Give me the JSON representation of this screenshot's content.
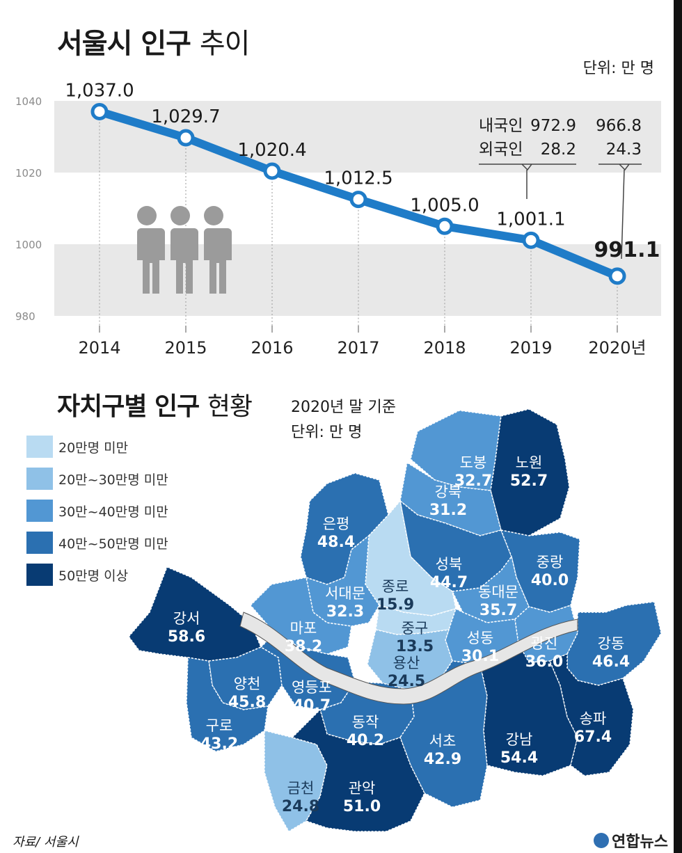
{
  "title_bold": "서울시 인구",
  "title_light": "추이",
  "unit": "단위: 만 명",
  "chart_data": [
    {
      "type": "line",
      "title": "서울시 인구 추이",
      "unit": "단위: 만 명",
      "categories": [
        "2014",
        "2015",
        "2016",
        "2017",
        "2018",
        "2019",
        "2020년"
      ],
      "values": [
        1037.0,
        1029.7,
        1020.4,
        1012.5,
        1005.0,
        1001.1,
        991.1
      ],
      "value_labels": [
        "1,037.0",
        "1,029.7",
        "1,020.4",
        "1,012.5",
        "1,005.0",
        "1,001.1",
        "991.1"
      ],
      "yticks": [
        1040,
        1020,
        1000,
        980
      ],
      "ylim": [
        980,
        1040
      ],
      "grid": "alternating bands",
      "color": "#1f7cc8",
      "breakdown": {
        "labels": [
          "내국인",
          "외국인"
        ],
        "2019": [
          "972.9",
          "28.2"
        ],
        "2020": [
          "966.8",
          "24.3"
        ]
      }
    },
    {
      "type": "choropleth",
      "title": "자치구별 인구 현황",
      "basis": "2020년 말 기준",
      "unit": "단위: 만 명",
      "legend": [
        {
          "label": "20만명 미만",
          "color": "#b9dbf2"
        },
        {
          "label": "20만~30만명 미만",
          "color": "#8fc1e7"
        },
        {
          "label": "30만~40만명 미만",
          "color": "#5297d3"
        },
        {
          "label": "40만~50만명 미만",
          "color": "#2b70b1"
        },
        {
          "label": "50만명 이상",
          "color": "#083b73"
        }
      ],
      "districts": [
        {
          "name": "도봉",
          "value": "32.7",
          "tier": 2
        },
        {
          "name": "노원",
          "value": "52.7",
          "tier": 4
        },
        {
          "name": "강북",
          "value": "31.2",
          "tier": 2
        },
        {
          "name": "은평",
          "value": "48.4",
          "tier": 3
        },
        {
          "name": "성북",
          "value": "44.7",
          "tier": 3
        },
        {
          "name": "중랑",
          "value": "40.0",
          "tier": 3
        },
        {
          "name": "종로",
          "value": "15.9",
          "tier": 0
        },
        {
          "name": "동대문",
          "value": "35.7",
          "tier": 2
        },
        {
          "name": "서대문",
          "value": "32.3",
          "tier": 2
        },
        {
          "name": "강서",
          "value": "58.6",
          "tier": 4
        },
        {
          "name": "마포",
          "value": "38.2",
          "tier": 2
        },
        {
          "name": "중구",
          "value": "13.5",
          "tier": 0
        },
        {
          "name": "성동",
          "value": "30.1",
          "tier": 2
        },
        {
          "name": "광진",
          "value": "36.0",
          "tier": 2
        },
        {
          "name": "강동",
          "value": "46.4",
          "tier": 3
        },
        {
          "name": "용산",
          "value": "24.5",
          "tier": 1
        },
        {
          "name": "양천",
          "value": "45.8",
          "tier": 3
        },
        {
          "name": "영등포",
          "value": "40.7",
          "tier": 3
        },
        {
          "name": "구로",
          "value": "43.2",
          "tier": 3
        },
        {
          "name": "동작",
          "value": "40.2",
          "tier": 3
        },
        {
          "name": "서초",
          "value": "42.9",
          "tier": 3
        },
        {
          "name": "강남",
          "value": "54.4",
          "tier": 4
        },
        {
          "name": "송파",
          "value": "67.4",
          "tier": 4
        },
        {
          "name": "금천",
          "value": "24.8",
          "tier": 1
        },
        {
          "name": "관악",
          "value": "51.0",
          "tier": 4
        }
      ]
    }
  ],
  "title2_bold": "자치구별 인구",
  "title2_light": "현황",
  "basis": "2020년 말 기준",
  "unit2": "단위: 만 명",
  "source": "자료/ 서울시",
  "logo": "연합뉴스",
  "people_icon": "people-icon",
  "band_color": "#e8e8e8",
  "river_color": "#e6e6e6"
}
